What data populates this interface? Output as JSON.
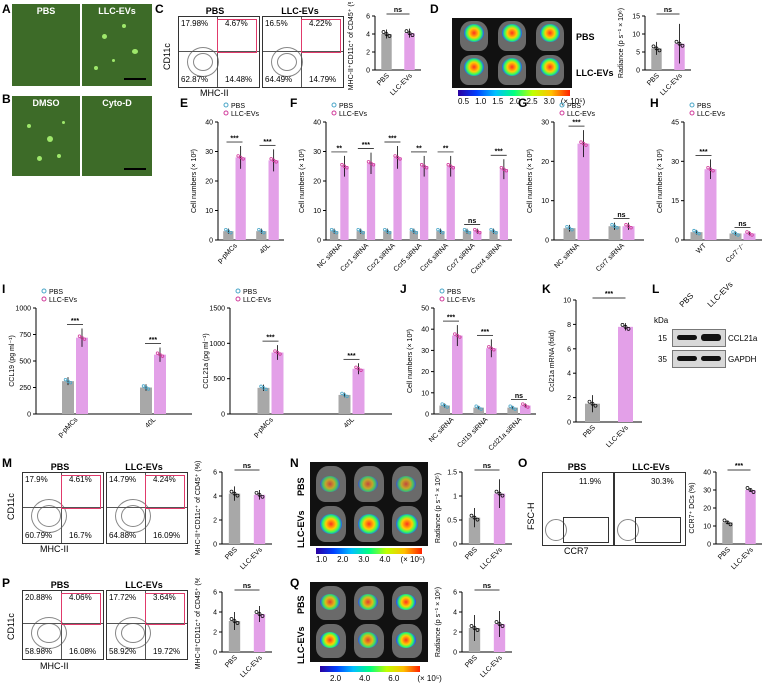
{
  "panels": {
    "A": {
      "letter": "A",
      "labels": [
        "PBS",
        "LLC-EVs"
      ]
    },
    "B": {
      "letter": "B",
      "labels": [
        "DMSO",
        "Cyto-D"
      ]
    },
    "C": {
      "letter": "C",
      "labels": [
        "PBS",
        "LLC-EVs"
      ],
      "pbs_quads": [
        "17.98%",
        "4.67%",
        "62.87%",
        "14.48%"
      ],
      "llc_quads": [
        "16.5%",
        "4.22%",
        "64.49%",
        "14.79%"
      ],
      "xaxis": "MHC-II",
      "yaxis": "CD11c"
    },
    "D": {
      "letter": "D",
      "labels": [
        "PBS",
        "LLC-EVs"
      ],
      "scale": [
        "0.5",
        "1.0",
        "1.5",
        "2.0",
        "2.5",
        "3.0"
      ],
      "scale_unit": "(× 10⁵)"
    },
    "E": {
      "letter": "E"
    },
    "F": {
      "letter": "F"
    },
    "G": {
      "letter": "G"
    },
    "H": {
      "letter": "H"
    },
    "I": {
      "letter": "I"
    },
    "J": {
      "letter": "J"
    },
    "K": {
      "letter": "K"
    },
    "L": {
      "letter": "L",
      "kda": "kDa",
      "cols": [
        "PBS",
        "LLC-EVs"
      ],
      "rows": [
        {
          "mw": "15",
          "name": "CCL21a"
        },
        {
          "mw": "35",
          "name": "GAPDH"
        }
      ]
    },
    "M": {
      "letter": "M",
      "labels": [
        "PBS",
        "LLC-EVs"
      ],
      "pbs_quads": [
        "17.9%",
        "4.61%",
        "60.79%",
        "16.7%"
      ],
      "llc_quads": [
        "14.79%",
        "4.24%",
        "64.88%",
        "16.09%"
      ],
      "xaxis": "MHC-II",
      "yaxis": "CD11c"
    },
    "N": {
      "letter": "N",
      "labels": [
        "PBS",
        "LLC-EVs"
      ],
      "scale": [
        "1.0",
        "2.0",
        "3.0",
        "4.0"
      ],
      "scale_unit": "(× 10⁵)"
    },
    "O": {
      "letter": "O",
      "labels": [
        "PBS",
        "LLC-EVs"
      ],
      "pcts": [
        "11.9%",
        "30.3%"
      ],
      "xaxis": "CCR7",
      "yaxis": "FSC-H"
    },
    "P": {
      "letter": "P",
      "labels": [
        "PBS",
        "LLC-EVs"
      ],
      "pbs_quads": [
        "20.88%",
        "4.06%",
        "58.98%",
        "16.08%"
      ],
      "llc_quads": [
        "17.72%",
        "3.64%",
        "58.92%",
        "19.72%"
      ],
      "xaxis": "MHC-II",
      "yaxis": "CD11c"
    },
    "Q": {
      "letter": "Q",
      "labels": [
        "PBS",
        "LLC-EVs"
      ],
      "scale": [
        "2.0",
        "4.0",
        "6.0"
      ],
      "scale_unit": "(× 10⁵)"
    }
  },
  "chart_data": [
    {
      "id": "C_bar",
      "type": "bar",
      "categories": [
        "PBS",
        "LLC-EVs"
      ],
      "values": [
        4.0,
        4.1
      ],
      "errors": [
        0.5,
        0.5
      ],
      "ylim": [
        0,
        6
      ],
      "yticks": [
        0,
        2,
        4,
        6
      ],
      "ylabel": "MHC-II⁺CD11c⁺ of CD45⁺ (%)",
      "sig": [
        "ns"
      ]
    },
    {
      "id": "D_bar",
      "type": "bar",
      "categories": [
        "PBS",
        "LLC-EVs"
      ],
      "values": [
        6.0,
        7.3
      ],
      "errors": [
        1.8,
        5.5
      ],
      "ylim": [
        0,
        15
      ],
      "yticks": [
        0,
        5,
        10,
        15
      ],
      "ylabel": "Radiance (p s⁻¹ × 10⁶)",
      "sig": [
        "ns"
      ]
    },
    {
      "id": "E",
      "type": "bar",
      "legend": [
        "PBS",
        "LLC-EVs"
      ],
      "categories": [
        "p-pMCs",
        "40L"
      ],
      "series": [
        {
          "name": "PBS",
          "values": [
            3,
            3
          ]
        },
        {
          "name": "LLC-EVs",
          "values": [
            28,
            27
          ]
        }
      ],
      "ylim": [
        0,
        40
      ],
      "yticks": [
        0,
        10,
        20,
        30,
        40
      ],
      "ylabel": "Cell numbers (× 10²)",
      "sig": [
        "***",
        "***"
      ]
    },
    {
      "id": "F",
      "type": "bar",
      "legend": [
        "PBS",
        "LLC-EVs"
      ],
      "categories": [
        "NC siRNA",
        "Ccr1 siRNA",
        "Ccr2 siRNA",
        "Ccr5 siRNA",
        "Ccr6 siRNA",
        "Ccr7 siRNA",
        "Cxcr4 siRNA"
      ],
      "series": [
        {
          "name": "PBS",
          "values": [
            3,
            3,
            3,
            3,
            3,
            3,
            3
          ]
        },
        {
          "name": "LLC-EVs",
          "values": [
            25,
            26,
            28,
            25,
            25,
            3,
            24
          ]
        }
      ],
      "ylim": [
        0,
        40
      ],
      "yticks": [
        0,
        10,
        20,
        30,
        40
      ],
      "ylabel": "Cell numbers (× 10²)",
      "sig": [
        "**",
        "***",
        "***",
        "**",
        "**",
        "ns",
        "***"
      ]
    },
    {
      "id": "G",
      "type": "bar",
      "legend": [
        "PBS",
        "LLC-EVs"
      ],
      "categories": [
        "NC siRNA",
        "Ccr7 siRNA"
      ],
      "series": [
        {
          "name": "PBS",
          "values": [
            3,
            3.5
          ]
        },
        {
          "name": "LLC-EVs",
          "values": [
            24.5,
            3.5
          ]
        }
      ],
      "ylim": [
        0,
        30
      ],
      "yticks": [
        0,
        10,
        20,
        30
      ],
      "ylabel": "Cell numbers (× 10²)",
      "sig": [
        "***",
        "ns"
      ]
    },
    {
      "id": "H",
      "type": "bar",
      "legend": [
        "PBS",
        "LLC-EVs"
      ],
      "categories": [
        "WT",
        "Ccr7⁻/⁻"
      ],
      "series": [
        {
          "name": "PBS",
          "values": [
            3,
            2.5
          ]
        },
        {
          "name": "LLC-EVs",
          "values": [
            27,
            2.5
          ]
        }
      ],
      "ylim": [
        0,
        45
      ],
      "yticks": [
        0,
        15,
        30,
        45
      ],
      "ylabel": "Cell numbers (× 10²)",
      "sig": [
        "***",
        "ns"
      ]
    },
    {
      "id": "I1",
      "type": "bar",
      "legend": [
        "PBS",
        "LLC-EVs"
      ],
      "categories": [
        "p-pMCs",
        "40L"
      ],
      "series": [
        {
          "name": "PBS",
          "values": [
            310,
            250
          ]
        },
        {
          "name": "LLC-EVs",
          "values": [
            720,
            560
          ]
        }
      ],
      "ylim": [
        0,
        1000
      ],
      "yticks": [
        0,
        250,
        500,
        750,
        1000
      ],
      "ylabel": "CCL19 (pg ml⁻¹)",
      "sig": [
        "***",
        "***"
      ]
    },
    {
      "id": "I2",
      "type": "bar",
      "legend": [
        "PBS",
        "LLC-EVs"
      ],
      "categories": [
        "p-pMCs",
        "40L"
      ],
      "series": [
        {
          "name": "PBS",
          "values": [
            370,
            270
          ]
        },
        {
          "name": "LLC-EVs",
          "values": [
            870,
            640
          ]
        }
      ],
      "ylim": [
        0,
        1500
      ],
      "yticks": [
        0,
        500,
        1000,
        1500
      ],
      "ylabel": "CCL21a (pg ml⁻¹)",
      "sig": [
        "***",
        "***"
      ]
    },
    {
      "id": "J",
      "type": "bar",
      "legend": [
        "PBS",
        "LLC-EVs"
      ],
      "categories": [
        "NC siRNA",
        "Ccl19 siRNA",
        "Ccl21a siRNA"
      ],
      "series": [
        {
          "name": "PBS",
          "values": [
            4,
            3,
            3
          ]
        },
        {
          "name": "LLC-EVs",
          "values": [
            37,
            31,
            4
          ]
        }
      ],
      "ylim": [
        0,
        50
      ],
      "yticks": [
        0,
        10,
        20,
        30,
        40,
        50
      ],
      "ylabel": "Cell numbers (× 10²)",
      "sig": [
        "***",
        "***",
        "ns"
      ]
    },
    {
      "id": "K",
      "type": "bar",
      "categories": [
        "PBS",
        "LLC-EVs"
      ],
      "values": [
        1.5,
        7.8
      ],
      "errors": [
        0.7,
        0.3
      ],
      "ylim": [
        0,
        10
      ],
      "yticks": [
        0,
        2,
        4,
        6,
        8,
        10
      ],
      "ylabel": "Ccl21a mRNA (fold)",
      "sig": [
        "***"
      ]
    },
    {
      "id": "M_bar",
      "type": "bar",
      "categories": [
        "PBS",
        "LLC-EVs"
      ],
      "values": [
        4.2,
        4.1
      ],
      "errors": [
        0.6,
        0.4
      ],
      "ylim": [
        0,
        6
      ],
      "yticks": [
        0,
        2,
        4,
        6
      ],
      "ylabel": "MHC-II⁺CD11c⁺ of CD45⁺ (%)",
      "sig": [
        "ns"
      ]
    },
    {
      "id": "N_bar",
      "type": "bar",
      "categories": [
        "PBS",
        "LLC-EVs"
      ],
      "values": [
        0.55,
        1.05
      ],
      "errors": [
        0.2,
        0.3
      ],
      "ylim": [
        0,
        1.5
      ],
      "yticks": [
        0,
        0.5,
        1.0,
        1.5
      ],
      "ylabel": "Radiance (p s⁻¹ × 10⁵)",
      "sig": [
        "ns"
      ]
    },
    {
      "id": "O_bar",
      "type": "bar",
      "categories": [
        "PBS",
        "LLC-EVs"
      ],
      "values": [
        12,
        30
      ],
      "errors": [
        0.8,
        0.8
      ],
      "ylim": [
        0,
        40
      ],
      "yticks": [
        0,
        10,
        20,
        30,
        40
      ],
      "ylabel": "CCR7⁺ DCs (%)",
      "sig": [
        "***"
      ]
    },
    {
      "id": "P_bar",
      "type": "bar",
      "categories": [
        "PBS",
        "LLC-EVs"
      ],
      "values": [
        3.1,
        3.8
      ],
      "errors": [
        0.9,
        0.8
      ],
      "ylim": [
        0,
        6
      ],
      "yticks": [
        0,
        2,
        4,
        6
      ],
      "ylabel": "MHC-II⁺CD11c⁺ of CD45⁺ (%)",
      "sig": [
        "ns"
      ]
    },
    {
      "id": "Q_bar",
      "type": "bar",
      "categories": [
        "PBS",
        "LLC-EVs"
      ],
      "values": [
        2.4,
        2.8
      ],
      "errors": [
        1.3,
        1.3
      ],
      "ylim": [
        0,
        6
      ],
      "yticks": [
        0,
        2,
        4,
        6
      ],
      "ylabel": "Radiance (p s⁻¹ × 10⁶)",
      "sig": [
        "ns"
      ]
    }
  ]
}
